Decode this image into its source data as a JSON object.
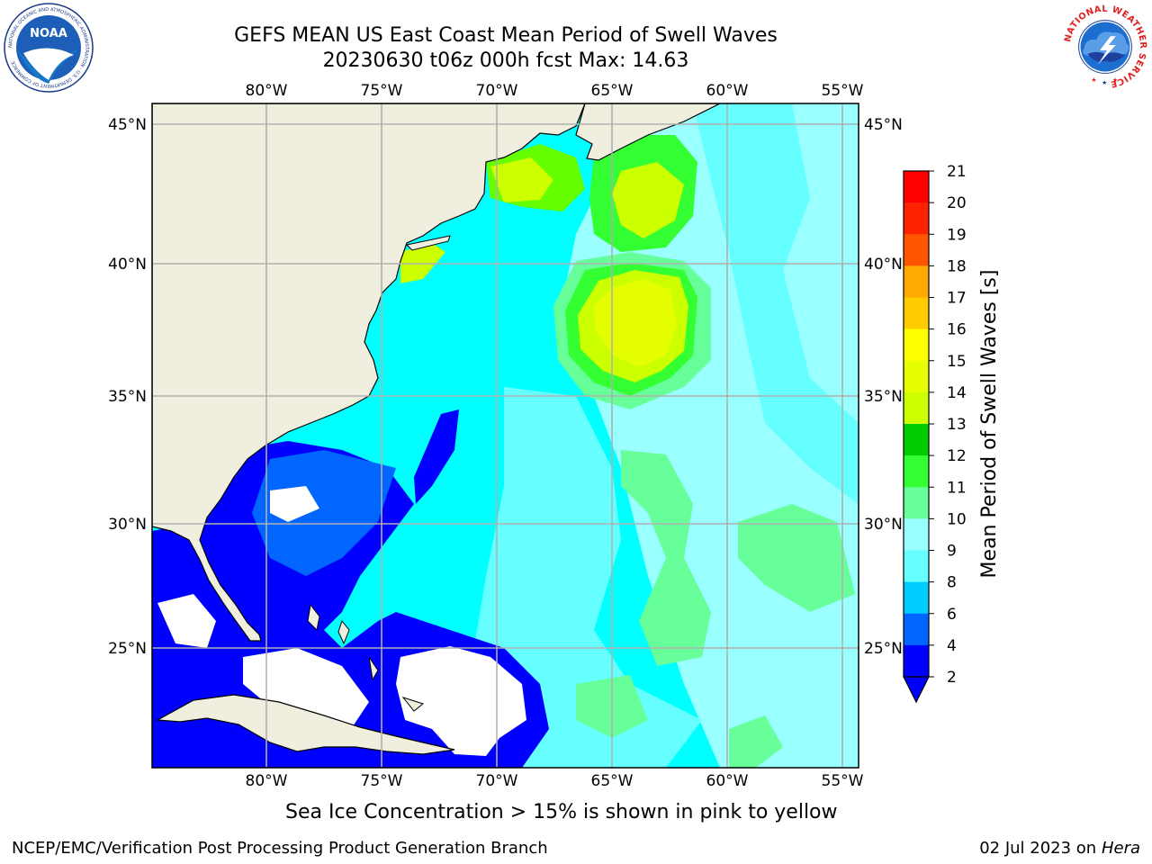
{
  "header": {
    "title_line1": "GEFS MEAN US East Coast Mean Period of Swell Waves",
    "title_line2": "20230630 t06z 000h fcst   Max: 14.63"
  },
  "logos": {
    "noaa_text": "NOAA",
    "noaa_ring_text": "NATIONAL OCEANIC AND ATMOSPHERIC ADMINISTRATION · U.S. DEPARTMENT OF COMMERCE",
    "nws_ring_text": "NATIONAL WEATHER SERVICE"
  },
  "map": {
    "longitude_labels": [
      "80°W",
      "75°W",
      "70°W",
      "65°W",
      "60°W",
      "55°W"
    ],
    "latitude_labels": [
      "45°N",
      "40°N",
      "35°N",
      "30°N",
      "25°N"
    ],
    "colors": {
      "land": "#efeedf",
      "no_data": "#ffffff",
      "grid": "#b0b0b0"
    }
  },
  "colorbar": {
    "label": "Mean Period of Swell Waves [s]",
    "ticks": [
      "2",
      "4",
      "6",
      "8",
      "9",
      "10",
      "11",
      "12",
      "13",
      "14",
      "15",
      "16",
      "17",
      "18",
      "19",
      "20",
      "21"
    ],
    "colors": [
      "#0000ff",
      "#0066ff",
      "#00ccff",
      "#00ffff",
      "#66ffff",
      "#99ffff",
      "#66ff99",
      "#33ff33",
      "#00cc00",
      "#66ff00",
      "#ccff00",
      "#e6ff00",
      "#ffff00",
      "#ffcc00",
      "#ffaa00",
      "#ff8800",
      "#ff5500",
      "#ff2200",
      "#ff0000"
    ],
    "under_color": "#0000ff"
  },
  "footer": {
    "note": "Sea Ice Concentration > 15% is shown in pink to yellow",
    "left": "NCEP/EMC/Verification Post Processing Product Generation Branch",
    "date": "02 Jul 2023 on ",
    "machine": "Hera"
  }
}
